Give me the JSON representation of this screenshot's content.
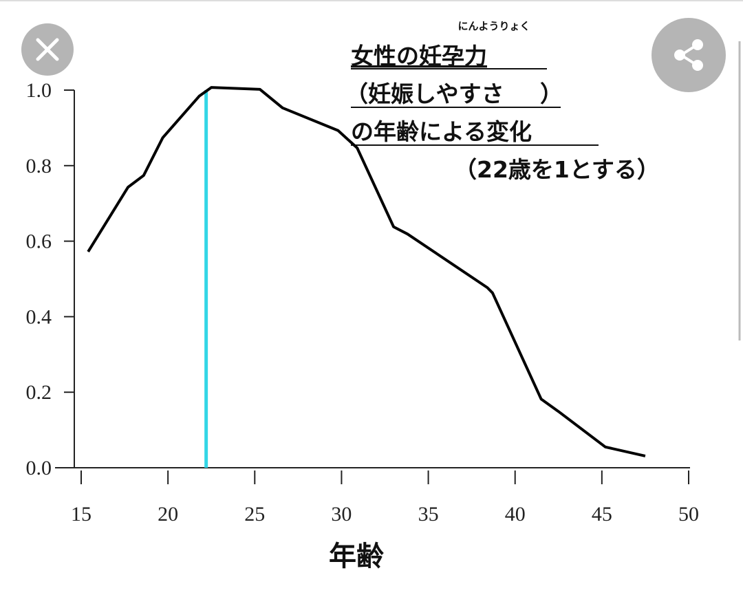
{
  "chart_data": {
    "type": "line",
    "ruby": "にんようりょく",
    "title": "女性の妊孕力",
    "subtitle_open": "（",
    "subtitle": "妊娠しやすさ",
    "subtitle_close": "）",
    "title_line3": "の年齢による変化",
    "note": "（22歳を1とする）",
    "xlabel": "年齢",
    "x": [
      15.4,
      17.7,
      18.6,
      19.7,
      21.8,
      22.5,
      25.3,
      26.6,
      29.8,
      30.9,
      33.0,
      33.8,
      38.4,
      38.7,
      41.5,
      42.5,
      45.2,
      47.5
    ],
    "series": [
      {
        "color": "#000000",
        "values": [
          0.572,
          0.743,
          0.774,
          0.874,
          0.984,
          1.007,
          1.002,
          0.953,
          0.893,
          0.847,
          0.638,
          0.619,
          0.477,
          0.463,
          0.182,
          0.149,
          0.055,
          0.031
        ]
      }
    ],
    "marker_x": 22.2,
    "marker_color": "#33d6e6",
    "subtitle_color": "#e02020",
    "xlim": [
      15,
      50
    ],
    "xticks": [
      15,
      20,
      25,
      30,
      35,
      40,
      45,
      50
    ],
    "ylim": [
      0,
      1.0
    ],
    "yticks": [
      {
        "value": 0,
        "label": "0.0"
      },
      0.2,
      0.4,
      0.6,
      0.8,
      {
        "value": 1.0,
        "label": "1.0"
      }
    ]
  }
}
